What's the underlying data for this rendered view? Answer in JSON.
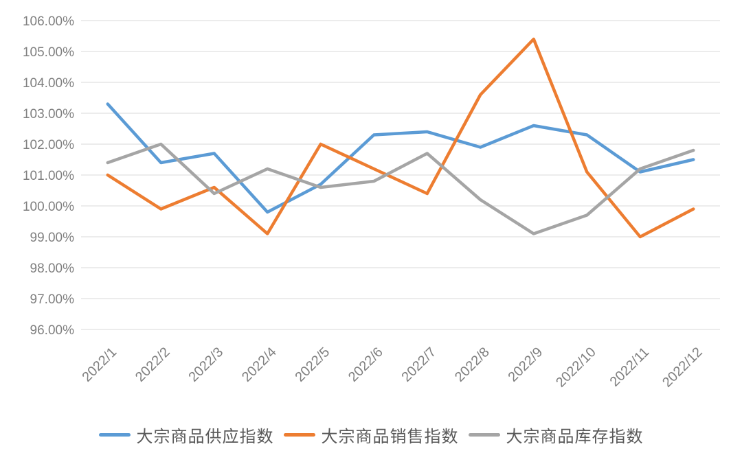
{
  "chart_data": {
    "type": "line",
    "title": "",
    "xlabel": "",
    "ylabel": "",
    "categories": [
      "2022/1",
      "2022/2",
      "2022/3",
      "2022/4",
      "2022/5",
      "2022/6",
      "2022/7",
      "2022/8",
      "2022/9",
      "2022/10",
      "2022/11",
      "2022/12"
    ],
    "series": [
      {
        "name": "大宗商品供应指数",
        "color": "#5B9BD5",
        "values": [
          103.3,
          101.4,
          101.7,
          99.8,
          100.7,
          102.3,
          102.4,
          101.9,
          102.6,
          102.3,
          101.1,
          101.5
        ]
      },
      {
        "name": "大宗商品销售指数",
        "color": "#ED7D31",
        "values": [
          101.0,
          99.9,
          100.6,
          99.1,
          102.0,
          101.2,
          100.4,
          103.6,
          105.4,
          101.1,
          99.0,
          99.9
        ]
      },
      {
        "name": "大宗商品库存指数",
        "color": "#A5A5A5",
        "values": [
          101.4,
          102.0,
          100.4,
          101.2,
          100.6,
          100.8,
          101.7,
          100.2,
          99.1,
          99.7,
          101.2,
          101.8
        ]
      }
    ],
    "ylim": [
      96,
      106
    ],
    "y_tick_step": 1,
    "y_tick_labels": [
      "106.00%",
      "105.00%",
      "104.00%",
      "103.00%",
      "102.00%",
      "101.00%",
      "100.00%",
      "99.00%",
      "98.00%",
      "97.00%",
      "96.00%"
    ],
    "grid": "horizontal-only",
    "legend_position": "bottom"
  },
  "style": {
    "gridline_color": "#D9D9D9",
    "axis_text_color": "#7F7F7F",
    "legend_text_color": "#595959",
    "background": "#FFFFFF"
  }
}
